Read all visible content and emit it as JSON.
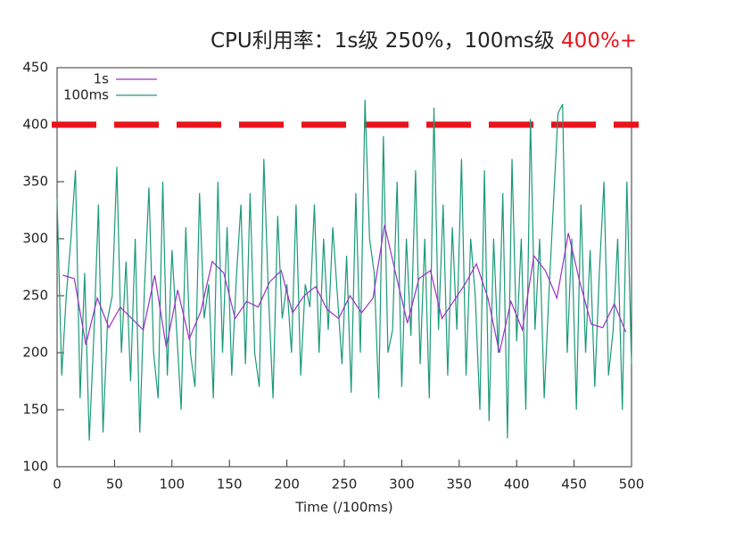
{
  "chart_data": {
    "type": "line",
    "title": "CPU利用率：1s级 250%，100ms级 ",
    "title_highlight": "400%+",
    "title_highlight_color": "#e8141d",
    "x_label": "Time (/100ms)",
    "xlim": [
      0,
      500
    ],
    "ylim": [
      100,
      450
    ],
    "xticks": [
      0,
      50,
      100,
      150,
      200,
      250,
      300,
      350,
      400,
      450,
      500
    ],
    "yticks": [
      100,
      150,
      200,
      250,
      300,
      350,
      400,
      450
    ],
    "legend": "top-left",
    "threshold": {
      "value": 400,
      "color": "#e8141d"
    },
    "series": [
      {
        "name": "1s",
        "color": "#9b30c8",
        "x": [
          5,
          15,
          25,
          35,
          45,
          55,
          65,
          75,
          85,
          95,
          105,
          115,
          125,
          135,
          145,
          155,
          165,
          175,
          185,
          195,
          205,
          215,
          225,
          235,
          245,
          255,
          265,
          275,
          285,
          295,
          305,
          315,
          325,
          335,
          345,
          355,
          365,
          375,
          385,
          395,
          405,
          415,
          425,
          435,
          445,
          455,
          465,
          475,
          485,
          495
        ],
        "values": [
          268,
          265,
          207,
          248,
          222,
          240,
          230,
          220,
          268,
          205,
          255,
          212,
          236,
          280,
          270,
          230,
          245,
          240,
          262,
          272,
          235,
          250,
          258,
          238,
          230,
          250,
          235,
          248,
          312,
          268,
          226,
          265,
          272,
          230,
          245,
          260,
          278,
          248,
          200,
          245,
          220,
          285,
          272,
          248,
          305,
          262,
          225,
          222,
          243,
          218
        ]
      },
      {
        "name": "100ms",
        "color": "#1a9a78",
        "x": [
          0,
          4,
          8,
          12,
          16,
          20,
          24,
          28,
          32,
          36,
          40,
          44,
          48,
          52,
          56,
          60,
          64,
          68,
          72,
          76,
          80,
          84,
          88,
          92,
          96,
          100,
          104,
          108,
          112,
          116,
          120,
          124,
          128,
          132,
          136,
          140,
          144,
          148,
          152,
          156,
          160,
          164,
          168,
          172,
          176,
          180,
          184,
          188,
          192,
          196,
          200,
          204,
          208,
          212,
          216,
          220,
          224,
          228,
          232,
          236,
          240,
          244,
          248,
          252,
          256,
          260,
          264,
          268,
          272,
          276,
          280,
          284,
          288,
          292,
          296,
          300,
          304,
          308,
          312,
          316,
          320,
          324,
          328,
          332,
          336,
          340,
          344,
          348,
          352,
          356,
          360,
          364,
          368,
          372,
          376,
          380,
          384,
          388,
          392,
          396,
          400,
          404,
          408,
          412,
          416,
          420,
          424,
          428,
          432,
          436,
          440,
          444,
          448,
          452,
          456,
          460,
          464,
          468,
          472,
          476,
          480,
          484,
          488,
          492,
          496,
          500
        ],
        "values": [
          335,
          180,
          250,
          300,
          360,
          160,
          270,
          123,
          215,
          330,
          130,
          230,
          250,
          363,
          200,
          280,
          175,
          300,
          130,
          255,
          345,
          200,
          160,
          350,
          180,
          290,
          220,
          150,
          310,
          200,
          170,
          340,
          230,
          260,
          160,
          350,
          200,
          310,
          180,
          265,
          330,
          190,
          340,
          200,
          170,
          370,
          250,
          160,
          320,
          230,
          260,
          200,
          330,
          180,
          260,
          240,
          330,
          200,
          300,
          220,
          310,
          250,
          190,
          285,
          165,
          340,
          200,
          422,
          300,
          270,
          160,
          390,
          200,
          220,
          350,
          170,
          300,
          215,
          360,
          190,
          300,
          160,
          415,
          220,
          330,
          180,
          310,
          220,
          370,
          180,
          300,
          250,
          150,
          360,
          140,
          300,
          200,
          340,
          125,
          370,
          210,
          300,
          150,
          405,
          220,
          300,
          160,
          250,
          330,
          410,
          418,
          200,
          300,
          150,
          330,
          200,
          290,
          170,
          270,
          350,
          180,
          220,
          300,
          150,
          350,
          190
        ]
      }
    ]
  }
}
